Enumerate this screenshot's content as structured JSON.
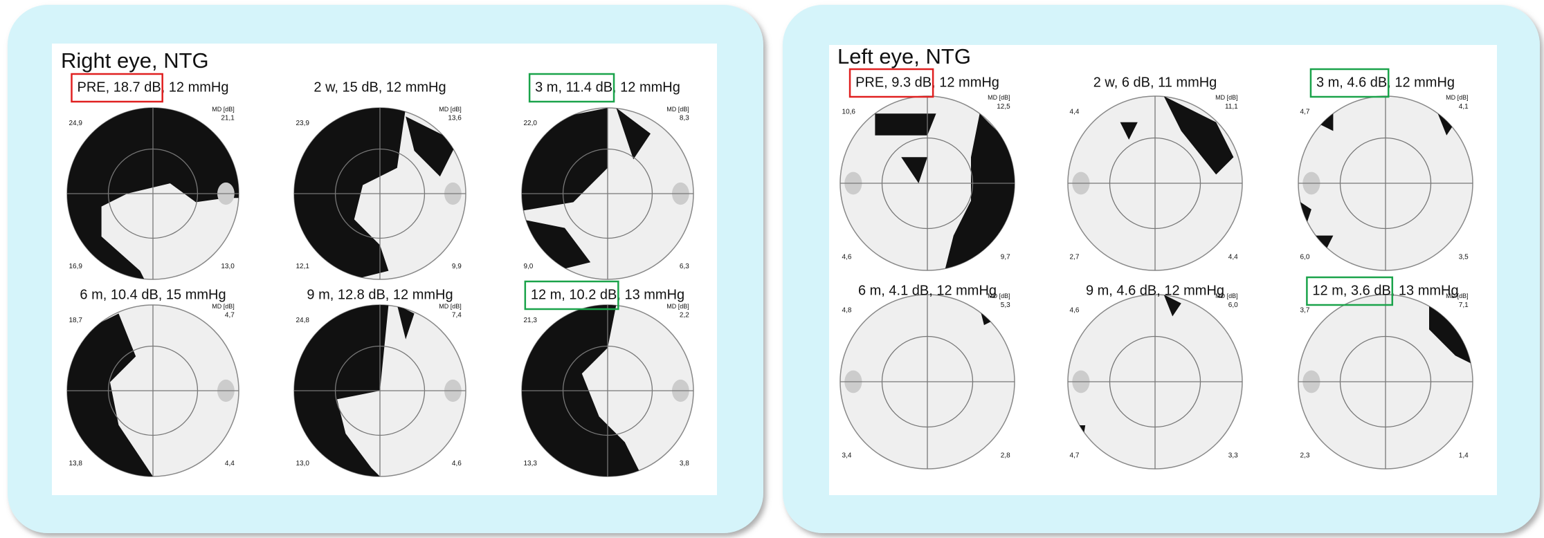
{
  "panels": [
    {
      "title": "Right eye, NTG",
      "plots": [
        {
          "caption": {
            "boxed": "PRE, 18.7 dB",
            "rest": ", 12 mmHg"
          },
          "box_color": "#e02020",
          "corners": {
            "top_left": "24,9",
            "md_label": "MD [dB]",
            "top_right": "21,1",
            "bottom_left": "16,9",
            "bottom_right": "13,0"
          }
        },
        {
          "caption": {
            "text": "2 w, 15 dB, 12 mmHg"
          },
          "corners": {
            "top_left": "23,9",
            "md_label": "MD [dB]",
            "top_right": "13,6",
            "bottom_left": "12,1",
            "bottom_right": "9,9"
          }
        },
        {
          "caption": {
            "boxed": "3 m, 11.4 dB",
            "rest": ", 12 mmHg"
          },
          "box_color": "#1aa34a",
          "corners": {
            "top_left": "22,0",
            "md_label": "MD [dB]",
            "top_right": "8,3",
            "bottom_left": "9,0",
            "bottom_right": "6,3"
          }
        },
        {
          "caption": {
            "text": "6 m, 10.4 dB, 15 mmHg"
          },
          "corners": {
            "top_left": "18,7",
            "md_label": "MD [dB]",
            "top_right": "4,7",
            "bottom_left": "13,8",
            "bottom_right": "4,4"
          }
        },
        {
          "caption": {
            "text": "9 m, 12.8 dB, 12 mmHg"
          },
          "corners": {
            "top_left": "24,8",
            "md_label": "MD [dB]",
            "top_right": "7,4",
            "bottom_left": "13,0",
            "bottom_right": "4,6"
          }
        },
        {
          "caption": {
            "boxed": "12 m, 10.2 dB",
            "rest": ", 13 mmHg"
          },
          "box_color": "#1aa34a",
          "corners": {
            "top_left": "21,3",
            "md_label": "MD [dB]",
            "top_right": "2,2",
            "bottom_left": "13,3",
            "bottom_right": "3,8"
          }
        }
      ]
    },
    {
      "title": "Left eye, NTG",
      "plots": [
        {
          "caption": {
            "boxed": "PRE, 9.3 dB",
            "rest": ", 12 mmHg"
          },
          "box_color": "#e02020",
          "corners": {
            "top_left": "10,6",
            "md_label": "MD [dB]",
            "top_right": "12,5",
            "bottom_left": "4,6",
            "bottom_right": "9,7"
          }
        },
        {
          "caption": {
            "text": "2 w, 6 dB, 11 mmHg"
          },
          "corners": {
            "top_left": "4,4",
            "md_label": "MD [dB]",
            "top_right": "11,1",
            "bottom_left": "2,7",
            "bottom_right": "4,4"
          }
        },
        {
          "caption": {
            "boxed": "3 m, 4.6 dB",
            "rest": ", 12 mmHg"
          },
          "box_color": "#1aa34a",
          "corners": {
            "top_left": "4,7",
            "md_label": "MD [dB]",
            "top_right": "4,1",
            "bottom_left": "6,0",
            "bottom_right": "3,5"
          }
        },
        {
          "caption": {
            "text": "6 m, 4.1 dB, 12 mmHg"
          },
          "corners": {
            "top_left": "4,8",
            "md_label": "MD [dB]",
            "top_right": "5,3",
            "bottom_left": "3,4",
            "bottom_right": "2,8"
          }
        },
        {
          "caption": {
            "text": "9 m, 4.6 dB, 12 mmHg"
          },
          "corners": {
            "top_left": "4,6",
            "md_label": "MD [dB]",
            "top_right": "6,0",
            "bottom_left": "4,7",
            "bottom_right": "3,3"
          }
        },
        {
          "caption": {
            "boxed": "12 m, 3.6 dB",
            "rest": ", 13 mmHg"
          },
          "box_color": "#1aa34a",
          "corners": {
            "top_left": "3,7",
            "md_label": "MD [dB]",
            "top_right": "7,1",
            "bottom_left": "2,3",
            "bottom_right": "1,4"
          }
        }
      ]
    }
  ]
}
